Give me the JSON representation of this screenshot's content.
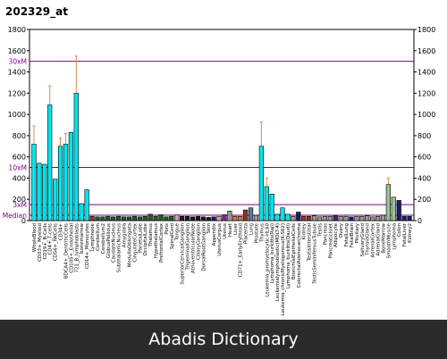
{
  "chart_data": {
    "type": "bar",
    "title": "202329_at",
    "xlabel": "",
    "ylabel": "",
    "ylim": [
      0,
      1800
    ],
    "yticks": [
      0,
      200,
      400,
      600,
      800,
      1000,
      1200,
      1400,
      1600,
      1800
    ],
    "grid": false,
    "reference_lines": [
      {
        "label": "30xM",
        "value": 1500,
        "color": "#800080"
      },
      {
        "label": "10xM",
        "value": 500,
        "color": "#800080"
      },
      {
        "label": "3xM",
        "value": 150,
        "color": "#800080"
      },
      {
        "label": "Median",
        "value": 50,
        "color": "#800080"
      }
    ],
    "group_colors": {
      "cyan": "#00e5ee",
      "darkgreen": "#1f5b2e",
      "black": "#1a1a1a",
      "brown": "#8b3a2a",
      "navy": "#1a1a70",
      "violet": "#7a2a9a",
      "purple": "#5a1a6a",
      "grey": "#9a9a9a",
      "steel": "#5a7a9a",
      "lightgreen": "#9ac09a",
      "pink": "#d8a0b0",
      "orange": "#e07050",
      "red": "#b02020"
    },
    "tissues": [
      {
        "label": "WholeBlood",
        "value": 720,
        "error": 170,
        "group": "cyan"
      },
      {
        "label": "CD33+_Myeloid",
        "value": 540,
        "error": 0,
        "group": "cyan"
      },
      {
        "label": "CD19+_B-Cells",
        "value": 530,
        "error": 0,
        "group": "cyan"
      },
      {
        "label": "CD4+_T-cells",
        "value": 1090,
        "error": 180,
        "group": "cyan"
      },
      {
        "label": "CD56+_NKCells",
        "value": 390,
        "error": 0,
        "group": "cyan"
      },
      {
        "label": "CD34+",
        "value": 700,
        "error": 80,
        "group": "cyan"
      },
      {
        "label": "BDCA4+_DentriticCells",
        "value": 720,
        "error": 100,
        "group": "cyan"
      },
      {
        "label": "CD105+_Endothelial",
        "value": 830,
        "error": 0,
        "group": "cyan"
      },
      {
        "label": "721_B_lymphoblasts",
        "value": 1200,
        "error": 350,
        "group": "cyan"
      },
      {
        "label": "bonemarrow",
        "value": 160,
        "error": 0,
        "group": "cyan"
      },
      {
        "label": "CD14+_Monocytes",
        "value": 290,
        "error": 0,
        "group": "cyan"
      },
      {
        "label": "Lymphnode",
        "value": 40,
        "error": 0,
        "group": "brown"
      },
      {
        "label": "Cerebellum",
        "value": 35,
        "error": 0,
        "group": "darkgreen"
      },
      {
        "label": "Cerebellum2",
        "value": 35,
        "error": 0,
        "group": "darkgreen"
      },
      {
        "label": "GlobusPallidus",
        "value": 40,
        "error": 0,
        "group": "darkgreen"
      },
      {
        "label": "CaudateNucleus",
        "value": 35,
        "error": 0,
        "group": "darkgreen"
      },
      {
        "label": "SubthalamicNucleus",
        "value": 40,
        "error": 0,
        "group": "darkgreen"
      },
      {
        "label": "Amygdala",
        "value": 35,
        "error": 0,
        "group": "darkgreen"
      },
      {
        "label": "MedullaOblongata",
        "value": 35,
        "error": 0,
        "group": "darkgreen"
      },
      {
        "label": "CingulateCortex",
        "value": 40,
        "error": 0,
        "group": "darkgreen"
      },
      {
        "label": "ParietalLobe",
        "value": 35,
        "error": 0,
        "group": "darkgreen"
      },
      {
        "label": "OccipitalLobe",
        "value": 40,
        "error": 0,
        "group": "darkgreen"
      },
      {
        "label": "Thalamus",
        "value": 60,
        "error": 0,
        "group": "darkgreen"
      },
      {
        "label": "Hypothalamus",
        "value": 40,
        "error": 0,
        "group": "darkgreen"
      },
      {
        "label": "PrefrontalCortex",
        "value": 55,
        "error": 0,
        "group": "darkgreen"
      },
      {
        "label": "Pons",
        "value": 35,
        "error": 0,
        "group": "darkgreen"
      },
      {
        "label": "SpinalCord",
        "value": 40,
        "error": 0,
        "group": "darkgreen"
      },
      {
        "label": "Tongue",
        "value": 55,
        "error": 0,
        "group": "pink"
      },
      {
        "label": "SuperiorCervicalGanglion",
        "value": 40,
        "error": 0,
        "group": "black"
      },
      {
        "label": "TrigeminalGanglion",
        "value": 40,
        "error": 0,
        "group": "black"
      },
      {
        "label": "AtrioventricularNode",
        "value": 35,
        "error": 0,
        "group": "black"
      },
      {
        "label": "CiliaryGanglion",
        "value": 40,
        "error": 0,
        "group": "black"
      },
      {
        "label": "DorsalRootGanglion",
        "value": 35,
        "error": 0,
        "group": "black"
      },
      {
        "label": "Skin",
        "value": 30,
        "error": 0,
        "group": "black"
      },
      {
        "label": "Appendix",
        "value": 35,
        "error": 0,
        "group": "navy"
      },
      {
        "label": "UterusCorpus",
        "value": 40,
        "error": 0,
        "group": "pink"
      },
      {
        "label": "Uterus",
        "value": 55,
        "error": 0,
        "group": "violet"
      },
      {
        "label": "Heart",
        "value": 90,
        "error": 0,
        "group": "grey"
      },
      {
        "label": "Liver",
        "value": 40,
        "error": 0,
        "group": "orange"
      },
      {
        "label": "CD71+_EarlyErythroid",
        "value": 40,
        "error": 0,
        "group": "orange"
      },
      {
        "label": "Placenta",
        "value": 100,
        "error": 0,
        "group": "brown"
      },
      {
        "label": "Lung",
        "value": 120,
        "error": 0,
        "group": "steel"
      },
      {
        "label": "Prostate",
        "value": 50,
        "error": 0,
        "group": "grey"
      },
      {
        "label": "Thymus",
        "value": 700,
        "error": 230,
        "group": "cyan"
      },
      {
        "label": "Leukemia_promyelocytic-HL60",
        "value": 320,
        "error": 80,
        "group": "cyan"
      },
      {
        "label": "Lymphoma_burkitts(Raji)",
        "value": 250,
        "error": 0,
        "group": "cyan"
      },
      {
        "label": "Leukemialymphoblastic(MOLT-4)",
        "value": 60,
        "error": 0,
        "group": "cyan"
      },
      {
        "label": "Leukemia_chronicMyelogenous(K-562)",
        "value": 120,
        "error": 0,
        "group": "cyan"
      },
      {
        "label": "Lymphoma_burkitts(Daudi)",
        "value": 60,
        "error": 0,
        "group": "cyan"
      },
      {
        "label": "BronchialEpithelialCells",
        "value": 40,
        "error": 0,
        "group": "grey"
      },
      {
        "label": "ColorectalAdenocarcinoma",
        "value": 80,
        "error": 0,
        "group": "navy"
      },
      {
        "label": "Kidney",
        "value": 40,
        "error": 0,
        "group": "brown"
      },
      {
        "label": "TestisInterstitial",
        "value": 40,
        "error": 0,
        "group": "brown"
      },
      {
        "label": "TestisSeminiferousTubule",
        "value": 45,
        "error": 0,
        "group": "grey"
      },
      {
        "label": "Testis",
        "value": 35,
        "error": 0,
        "group": "grey"
      },
      {
        "label": "Pancreas",
        "value": 40,
        "error": 0,
        "group": "grey"
      },
      {
        "label": "PancreaticIslet",
        "value": 40,
        "error": 0,
        "group": "grey"
      },
      {
        "label": "Adipocyte",
        "value": 45,
        "error": 0,
        "group": "purple"
      },
      {
        "label": "Ovary",
        "value": 40,
        "error": 0,
        "group": "grey"
      },
      {
        "label": "FetalLung",
        "value": 40,
        "error": 0,
        "group": "grey"
      },
      {
        "label": "FetalBrain",
        "value": 35,
        "error": 0,
        "group": "navy"
      },
      {
        "label": "Pituitary",
        "value": 40,
        "error": 0,
        "group": "grey"
      },
      {
        "label": "SalivaryGland",
        "value": 40,
        "error": 0,
        "group": "grey"
      },
      {
        "label": "ThyroidGland",
        "value": 45,
        "error": 0,
        "group": "grey"
      },
      {
        "label": "AdrenalCortex",
        "value": 35,
        "error": 0,
        "group": "grey"
      },
      {
        "label": "AdrenalGland",
        "value": 40,
        "error": 0,
        "group": "grey"
      },
      {
        "label": "BoneMarrow",
        "value": 50,
        "error": 0,
        "group": "grey"
      },
      {
        "label": "SmoothMuscle",
        "value": 340,
        "error": 60,
        "group": "lightgreen"
      },
      {
        "label": "Lymphoma",
        "value": 220,
        "error": 0,
        "group": "lightgreen"
      },
      {
        "label": "Colon",
        "value": 190,
        "error": 0,
        "group": "navy"
      },
      {
        "label": "FetalLiver",
        "value": 40,
        "error": 0,
        "group": "navy"
      },
      {
        "label": "Kidney2",
        "value": 40,
        "error": 0,
        "group": "navy"
      }
    ]
  },
  "banner": {
    "text": "Abadis Dictionary"
  }
}
